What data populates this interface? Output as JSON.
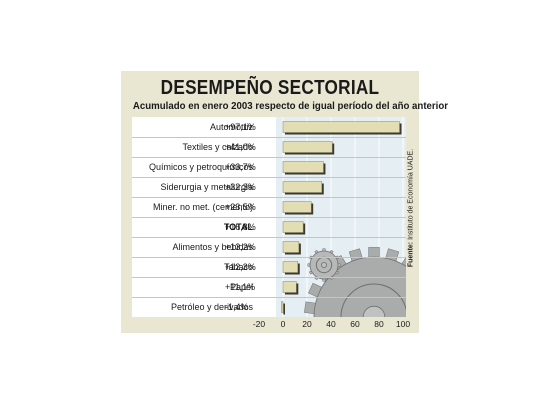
{
  "title": "DESEMPEÑO SECTORIAL",
  "subtitle": "Acumulado en enero 2003 respecto de igual período del año anterior",
  "source_label": "Fuente:",
  "source_text": "Instituto de Economía UADE.",
  "colors": {
    "card_bg": "#e9e7d2",
    "plot_bg": "#e4eef3",
    "bar_fill": "#e3ddb4",
    "bar_shadow": "#3b382c"
  },
  "chart_data": {
    "type": "bar",
    "orientation": "horizontal",
    "title": "DESEMPEÑO SECTORIAL",
    "subtitle": "Acumulado en enero 2003 respecto de igual período del año anterior",
    "categories": [
      "Automotriz",
      "Textiles y calzado",
      "Químicos y petroquímicos",
      "Siderurgia y metalurgia",
      "Miner. no met. (cemento)",
      "TOTAL",
      "Alimentos y bebidas",
      "Tabaco",
      "Papel",
      "Petróleo y derivados"
    ],
    "value_labels": [
      "+97,1%",
      "+41,0%",
      "+33,7%",
      "+32,3%",
      "+23,5%",
      "+16,8%",
      "+13,2%",
      "+12,3%",
      "+11,1%",
      "-1,4%"
    ],
    "values": [
      97.1,
      41.0,
      33.7,
      32.3,
      23.5,
      16.8,
      13.2,
      12.3,
      11.1,
      -1.4
    ],
    "bold_categories": [
      "TOTAL"
    ],
    "xlim": [
      -20,
      100
    ],
    "xticks": [
      "-20",
      "0",
      "20",
      "40",
      "60",
      "80",
      "100"
    ],
    "xtick_values": [
      -20,
      0,
      20,
      40,
      60,
      80,
      100
    ],
    "grid": true,
    "xlabel": "",
    "ylabel": ""
  }
}
